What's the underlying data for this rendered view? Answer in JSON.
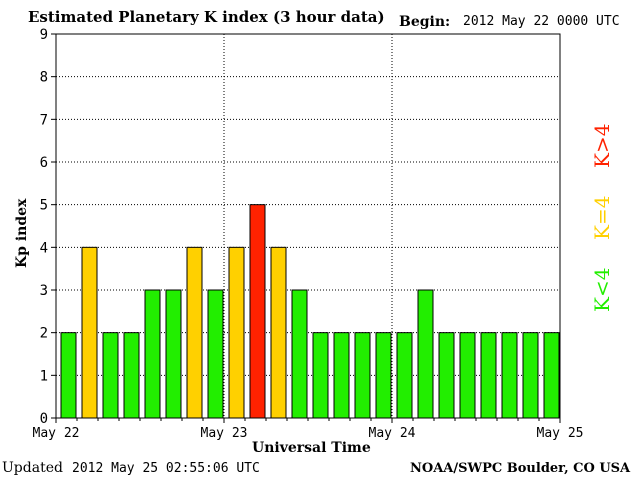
{
  "header": {
    "title": "Estimated Planetary K index (3 hour data)",
    "begin_label": "Begin:",
    "begin_value": "2012 May 22 0000 UTC"
  },
  "footer": {
    "updated_label": "Updated",
    "updated_value": "2012 May 25 02:55:06 UTC",
    "source": "NOAA/SWPC Boulder, CO USA"
  },
  "legend": [
    {
      "label": "K<4",
      "color": "#22ee00"
    },
    {
      "label": "K=4",
      "color": "#ffd000"
    },
    {
      "label": "K>4",
      "color": "#ff2200"
    }
  ],
  "chart_data": {
    "type": "bar",
    "title": "Estimated Planetary K index (3 hour data)",
    "xlabel": "Universal Time",
    "ylabel": "Kp index",
    "ylim": [
      0,
      9
    ],
    "y_ticks": [
      "0",
      "1",
      "2",
      "3",
      "4",
      "5",
      "6",
      "7",
      "8",
      "9"
    ],
    "x_ticks": [
      "May 22",
      "May 23",
      "May 24",
      "May 25"
    ],
    "grid": true,
    "colors": {
      "below": "#22ee00",
      "equal": "#ffd000",
      "above": "#ff2200"
    },
    "values": [
      2,
      4,
      2,
      2,
      3,
      3,
      4,
      3,
      4,
      5,
      4,
      3,
      2,
      2,
      2,
      2,
      2,
      3,
      2,
      2,
      2,
      2,
      2,
      2
    ]
  }
}
